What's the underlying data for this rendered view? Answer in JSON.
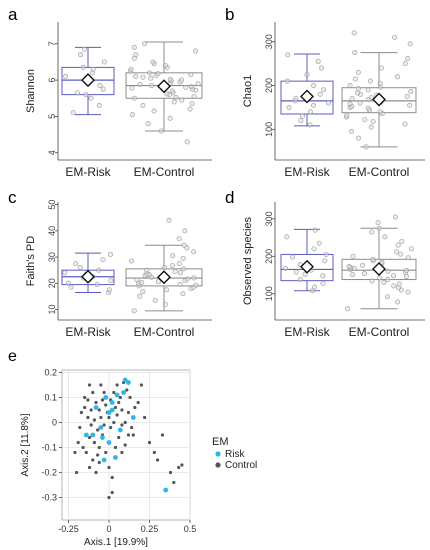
{
  "panel_labels": [
    "a",
    "b",
    "c",
    "d",
    "e"
  ],
  "colors": {
    "risk_box": "#5b5bbf",
    "control_box": "#8c8c8c",
    "point_fill": "#d9d9d9",
    "risk_point": "#2bb7e8",
    "control_point": "#555555",
    "grid": "#e3e3e3",
    "panel_bg": "#ffffff"
  },
  "chart_data": [
    {
      "type": "box",
      "panel": "a",
      "title": "",
      "ylabel": "Shannon",
      "ylim": [
        3.8,
        7.6
      ],
      "yticks": [
        4,
        5,
        6,
        7
      ],
      "categories": [
        "EM-Risk",
        "EM-Control"
      ],
      "boxes": [
        {
          "name": "EM-Risk",
          "whisker_low": 5.05,
          "q1": 5.6,
          "median": 6.0,
          "q3": 6.35,
          "whisker_high": 6.9,
          "mean": 6.0,
          "points": [
            5.1,
            5.3,
            5.5,
            5.6,
            5.65,
            5.75,
            5.85,
            5.9,
            6.0,
            6.05,
            6.1,
            6.2,
            6.3,
            6.35,
            6.5,
            6.7,
            6.85
          ]
        },
        {
          "name": "EM-Control",
          "whisker_low": 4.6,
          "q1": 5.5,
          "median": 5.85,
          "q3": 6.2,
          "whisker_high": 7.05,
          "mean": 5.83,
          "points": [
            4.3,
            4.6,
            4.8,
            4.95,
            5.05,
            5.15,
            5.2,
            5.3,
            5.35,
            5.4,
            5.45,
            5.5,
            5.52,
            5.55,
            5.6,
            5.62,
            5.65,
            5.7,
            5.72,
            5.75,
            5.78,
            5.8,
            5.82,
            5.85,
            5.88,
            5.9,
            5.92,
            5.95,
            5.98,
            6.0,
            6.02,
            6.05,
            6.08,
            6.1,
            6.12,
            6.15,
            6.18,
            6.2,
            6.25,
            6.3,
            6.35,
            6.4,
            6.45,
            6.5,
            6.6,
            6.7,
            6.8,
            6.9,
            7.0
          ]
        }
      ]
    },
    {
      "type": "box",
      "panel": "b",
      "title": "",
      "ylabel": "Chao1",
      "ylim": [
        30,
        345
      ],
      "yticks": [
        100,
        200,
        300
      ],
      "categories": [
        "EM-Risk",
        "EM-Control"
      ],
      "boxes": [
        {
          "name": "EM-Risk",
          "whisker_low": 108,
          "q1": 135,
          "median": 165,
          "q3": 210,
          "whisker_high": 272,
          "mean": 175,
          "points": [
            110,
            120,
            130,
            140,
            150,
            155,
            160,
            165,
            170,
            180,
            190,
            200,
            210,
            225,
            240,
            255,
            270
          ]
        },
        {
          "name": "EM-Control",
          "whisker_low": 60,
          "q1": 138,
          "median": 165,
          "q3": 195,
          "whisker_high": 275,
          "mean": 168,
          "points": [
            60,
            80,
            95,
            105,
            112,
            118,
            122,
            128,
            132,
            136,
            140,
            144,
            148,
            150,
            152,
            155,
            158,
            160,
            162,
            165,
            168,
            170,
            172,
            175,
            178,
            180,
            183,
            186,
            190,
            193,
            196,
            200,
            205,
            210,
            215,
            220,
            230,
            240,
            250,
            262,
            275,
            295,
            310,
            320
          ]
        }
      ]
    },
    {
      "type": "box",
      "panel": "c",
      "title": "",
      "ylabel": "Faith's PD",
      "ylim": [
        6,
        51
      ],
      "yticks": [
        10,
        20,
        30,
        40,
        50
      ],
      "categories": [
        "EM-Risk",
        "EM-Control"
      ],
      "boxes": [
        {
          "name": "EM-Risk",
          "whisker_low": 16.5,
          "q1": 19.5,
          "median": 22.5,
          "q3": 25.0,
          "whisker_high": 31.5,
          "mean": 22.5,
          "points": [
            16.5,
            17.5,
            18.5,
            19.5,
            20.0,
            21.0,
            21.5,
            22.0,
            22.5,
            23.0,
            23.5,
            24.0,
            25.0,
            26.0,
            27.5,
            29.0,
            31.0
          ]
        },
        {
          "name": "EM-Control",
          "whisker_low": 9.5,
          "q1": 19.0,
          "median": 22.0,
          "q3": 25.5,
          "whisker_high": 34.5,
          "mean": 22.3,
          "points": [
            9.5,
            12.0,
            13.5,
            15.0,
            16.0,
            16.8,
            17.5,
            18.0,
            18.5,
            19.0,
            19.3,
            19.6,
            20.0,
            20.3,
            20.6,
            21.0,
            21.3,
            21.6,
            22.0,
            22.3,
            22.6,
            23.0,
            23.3,
            23.6,
            24.0,
            24.5,
            25.0,
            25.5,
            26.0,
            26.8,
            27.5,
            28.5,
            29.5,
            30.5,
            32.0,
            33.5,
            34.5,
            37.0,
            40.0,
            44.0
          ]
        }
      ]
    },
    {
      "type": "box",
      "panel": "d",
      "title": "",
      "ylabel": "Observed species",
      "ylim": [
        30,
        345
      ],
      "yticks": [
        100,
        200,
        300
      ],
      "categories": [
        "EM-Risk",
        "EM-Control"
      ],
      "boxes": [
        {
          "name": "EM-Risk",
          "whisker_low": 108,
          "q1": 135,
          "median": 165,
          "q3": 205,
          "whisker_high": 272,
          "mean": 172,
          "points": [
            108,
            118,
            128,
            138,
            148,
            152,
            158,
            163,
            168,
            178,
            188,
            198,
            205,
            220,
            235,
            252,
            270
          ]
        },
        {
          "name": "EM-Control",
          "whisker_low": 60,
          "q1": 138,
          "median": 163,
          "q3": 192,
          "whisker_high": 275,
          "mean": 166,
          "points": [
            60,
            78,
            92,
            104,
            110,
            116,
            121,
            126,
            130,
            134,
            138,
            142,
            146,
            148,
            151,
            154,
            157,
            160,
            162,
            165,
            168,
            170,
            173,
            176,
            180,
            184,
            188,
            192,
            196,
            200,
            206,
            212,
            220,
            230,
            240,
            252,
            265,
            275,
            290,
            305
          ]
        }
      ]
    },
    {
      "type": "scatter",
      "panel": "e",
      "title": "",
      "xlabel": "Axis.1   [19.9%]",
      "ylabel": "Axis.2   [11.8%]",
      "xlim": [
        -0.29,
        0.5
      ],
      "ylim": [
        -0.39,
        0.21
      ],
      "xticks": [
        -0.25,
        0,
        0.25,
        0.5
      ],
      "xtick_labels": [
        "-0.25",
        "0",
        "0.25",
        "0.5"
      ],
      "yticks": [
        -0.3,
        -0.2,
        -0.1,
        0,
        0.1,
        0.2
      ],
      "ytick_labels": [
        "-0.3",
        "-0.2",
        "-0.1",
        "0",
        "0.1",
        "0.2"
      ],
      "legend": {
        "title": "EM",
        "position": "right",
        "entries": [
          "Risk",
          "Control"
        ]
      },
      "series": [
        {
          "name": "Risk",
          "points": [
            [
              0.1,
              0.17
            ],
            [
              0.12,
              0.16
            ],
            [
              0.05,
              0.11
            ],
            [
              -0.02,
              0.1
            ],
            [
              0.02,
              0.05
            ],
            [
              0.0,
              0.04
            ],
            [
              -0.05,
              -0.02
            ],
            [
              -0.1,
              -0.05
            ],
            [
              -0.04,
              -0.06
            ],
            [
              0.0,
              -0.08
            ],
            [
              0.07,
              -0.03
            ],
            [
              0.15,
              0.02
            ],
            [
              -0.03,
              -0.15
            ],
            [
              0.35,
              -0.27
            ],
            [
              -0.14,
              -0.05
            ],
            [
              0.02,
              0.08
            ],
            [
              0.09,
              0.12
            ],
            [
              -0.08,
              0.06
            ],
            [
              0.04,
              -0.14
            ]
          ]
        },
        {
          "name": "Control",
          "points": [
            [
              -0.2,
              -0.2
            ],
            [
              -0.15,
              0.1
            ],
            [
              -0.12,
              0.15
            ],
            [
              -0.1,
              0.12
            ],
            [
              -0.08,
              0.08
            ],
            [
              -0.06,
              0.05
            ],
            [
              -0.05,
              0.15
            ],
            [
              -0.03,
              0.12
            ],
            [
              -0.02,
              0.07
            ],
            [
              0.0,
              0.02
            ],
            [
              0.01,
              -0.02
            ],
            [
              0.03,
              0.0
            ],
            [
              0.05,
              0.03
            ],
            [
              0.06,
              0.08
            ],
            [
              0.08,
              0.05
            ],
            [
              0.1,
              0.0
            ],
            [
              0.12,
              -0.05
            ],
            [
              0.15,
              -0.05
            ],
            [
              0.18,
              0.08
            ],
            [
              0.2,
              0.15
            ],
            [
              0.25,
              -0.08
            ],
            [
              0.28,
              -0.12
            ],
            [
              0.3,
              -0.15
            ],
            [
              0.33,
              -0.05
            ],
            [
              0.38,
              -0.2
            ],
            [
              0.43,
              -0.18
            ],
            [
              0.45,
              -0.17
            ],
            [
              0.4,
              -0.24
            ],
            [
              -0.18,
              -0.02
            ],
            [
              -0.16,
              -0.1
            ],
            [
              -0.14,
              -0.12
            ],
            [
              -0.12,
              -0.06
            ],
            [
              -0.1,
              -0.15
            ],
            [
              -0.08,
              -0.2
            ],
            [
              -0.06,
              -0.1
            ],
            [
              -0.04,
              -0.05
            ],
            [
              -0.02,
              -0.12
            ],
            [
              0.0,
              -0.18
            ],
            [
              0.02,
              -0.22
            ],
            [
              0.04,
              -0.1
            ],
            [
              0.06,
              -0.06
            ],
            [
              0.08,
              -0.12
            ],
            [
              -0.17,
              0.04
            ],
            [
              -0.13,
              0.02
            ],
            [
              -0.11,
              -0.01
            ],
            [
              -0.09,
              0.01
            ],
            [
              -0.07,
              -0.03
            ],
            [
              -0.05,
              0.02
            ],
            [
              -0.03,
              -0.01
            ],
            [
              -0.01,
              0.04
            ],
            [
              0.01,
              0.09
            ],
            [
              0.03,
              0.12
            ],
            [
              0.05,
              0.15
            ],
            [
              0.07,
              0.1
            ],
            [
              0.09,
              0.16
            ],
            [
              0.11,
              0.13
            ],
            [
              0.13,
              0.1
            ],
            [
              -0.15,
              0.06
            ],
            [
              -0.13,
              0.09
            ],
            [
              -0.11,
              0.05
            ],
            [
              -0.09,
              -0.08
            ],
            [
              -0.07,
              -0.13
            ],
            [
              -0.12,
              -0.18
            ],
            [
              0.02,
              -0.28
            ],
            [
              0.0,
              -0.3
            ],
            [
              0.22,
              0.02
            ],
            [
              0.16,
              0.06
            ],
            [
              0.14,
              -0.02
            ],
            [
              -0.19,
              -0.08
            ],
            [
              -0.21,
              -0.12
            ],
            [
              -0.04,
              0.09
            ],
            [
              0.04,
              0.06
            ],
            [
              0.08,
              -0.01
            ],
            [
              -0.06,
              -0.16
            ],
            [
              0.1,
              -0.09
            ],
            [
              0.12,
              0.04
            ]
          ]
        }
      ]
    }
  ]
}
